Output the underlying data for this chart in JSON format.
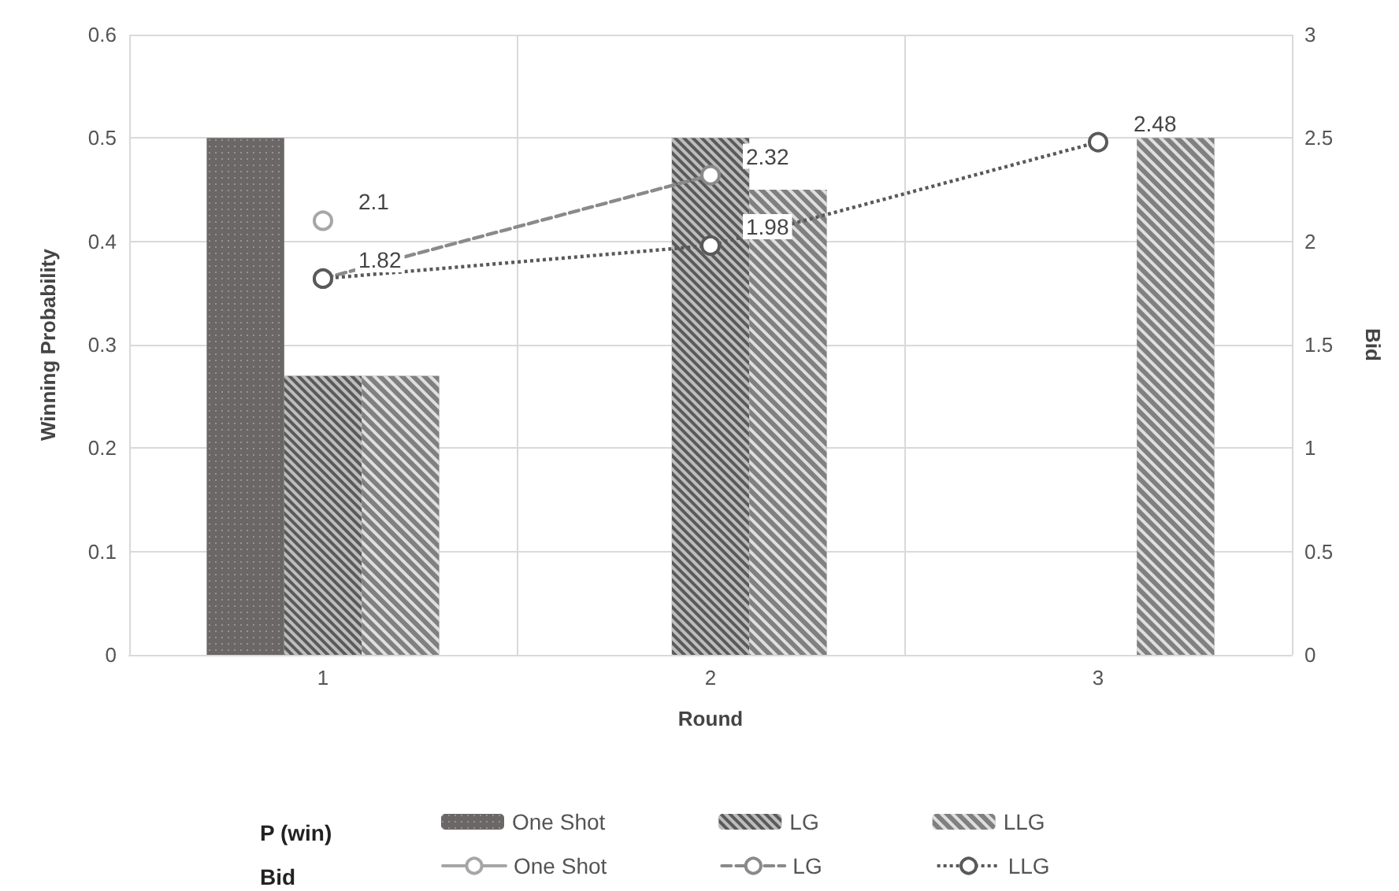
{
  "chart_data": {
    "type": "bar",
    "categories": [
      "1",
      "2",
      "3"
    ],
    "xlabel": "Round",
    "ylabel": "Winning Probability",
    "y2label": "Bid",
    "ylim": [
      0,
      0.6
    ],
    "yticks": [
      0,
      0.1,
      0.2,
      0.3,
      0.4,
      0.5,
      0.6
    ],
    "y2lim": [
      0,
      3
    ],
    "y2ticks": [
      0,
      0.5,
      1,
      1.5,
      2,
      2.5,
      3
    ],
    "grid": true,
    "legend": "bottom",
    "annotations": [
      "P (win)",
      "Bid"
    ],
    "series": [
      {
        "name": "One Shot",
        "color": "#6b6767",
        "values": [
          0.5,
          0,
          0
        ]
      },
      {
        "name": "LG",
        "color": "#5a5a5a",
        "values": [
          0.27,
          0.5,
          0
        ]
      },
      {
        "name": "LLG",
        "color": "#808080",
        "values": [
          0.27,
          0.45,
          0.5
        ]
      },
      {
        "name": "One Shot",
        "type": "line",
        "axis": "y2",
        "color": "#a6a6a6",
        "line_style": "solid",
        "marker": "circle",
        "values": [
          2.1,
          null,
          null
        ],
        "value_labels": [
          "2.1",
          null,
          null
        ]
      },
      {
        "name": "LG",
        "type": "line",
        "axis": "y2",
        "color": "#8a8a8a",
        "line_style": "dashed",
        "marker": "circle",
        "values": [
          1.82,
          2.32,
          null
        ],
        "value_labels": [
          null,
          "2.32",
          null
        ]
      },
      {
        "name": "LLG",
        "type": "line",
        "axis": "y2",
        "color": "#595959",
        "line_style": "dotted",
        "marker": "circle",
        "values": [
          1.82,
          1.98,
          2.48
        ],
        "value_labels": [
          "1.82",
          "1.98",
          "2.48"
        ]
      }
    ]
  }
}
